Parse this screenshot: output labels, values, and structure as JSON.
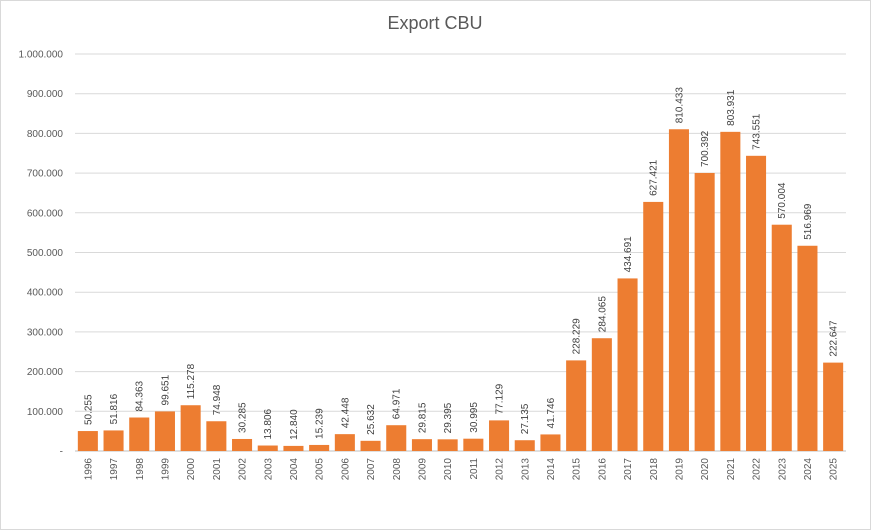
{
  "chart_data": {
    "type": "bar",
    "title": "Export CBU",
    "xlabel": "",
    "ylabel": "",
    "ylim": [
      0,
      1000000
    ],
    "yticks": [
      0,
      100000,
      200000,
      300000,
      400000,
      500000,
      600000,
      700000,
      800000,
      900000,
      1000000
    ],
    "ytick_labels": [
      "-",
      "100.000",
      "200.000",
      "300.000",
      "400.000",
      "500.000",
      "600.000",
      "700.000",
      "800.000",
      "900.000",
      "1.000.000"
    ],
    "grid": true,
    "bar_color": "#ED7D31",
    "categories": [
      "1996",
      "1997",
      "1998",
      "1999",
      "2000",
      "2001",
      "2002",
      "2003",
      "2004",
      "2005",
      "2006",
      "2007",
      "2008",
      "2009",
      "2010",
      "2011",
      "2012",
      "2013",
      "2014",
      "2015",
      "2016",
      "2017",
      "2018",
      "2019",
      "2020",
      "2021",
      "2022",
      "2023",
      "2024",
      "2025"
    ],
    "values": [
      50255,
      51816,
      84363,
      99651,
      115278,
      74948,
      30285,
      13806,
      12840,
      15239,
      42448,
      25632,
      64971,
      29815,
      29395,
      30995,
      77129,
      27135,
      41746,
      228229,
      284065,
      434691,
      627421,
      810433,
      700392,
      803931,
      743551,
      570004,
      516969,
      222647
    ],
    "data_labels": [
      "50.255",
      "51.816",
      "84.363",
      "99.651",
      "115.278",
      "74.948",
      "30.285",
      "13.806",
      "12.840",
      "15.239",
      "42.448",
      "25.632",
      "64.971",
      "29.815",
      "29.395",
      "30.995",
      "77.129",
      "27.135",
      "41.746",
      "228.229",
      "284.065",
      "434.691",
      "627.421",
      "810.433",
      "700.392",
      "803.931",
      "743.551",
      "570.004",
      "516.969",
      "222.647"
    ]
  }
}
